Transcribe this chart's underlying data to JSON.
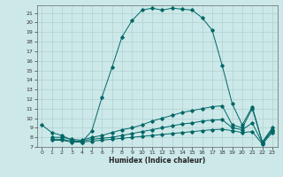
{
  "xlabel": "Humidex (Indice chaleur)",
  "xlim": [
    -0.5,
    23.5
  ],
  "ylim": [
    7,
    21.8
  ],
  "yticks": [
    7,
    8,
    9,
    10,
    11,
    12,
    13,
    14,
    15,
    16,
    17,
    18,
    19,
    20,
    21
  ],
  "xticks": [
    0,
    1,
    2,
    3,
    4,
    5,
    6,
    7,
    8,
    9,
    10,
    11,
    12,
    13,
    14,
    15,
    16,
    17,
    18,
    19,
    20,
    21,
    22,
    23
  ],
  "bg_color": "#cce8e8",
  "line_color": "#006666",
  "lines": [
    {
      "x": [
        0,
        1,
        2,
        3,
        4,
        5,
        6,
        7,
        8,
        9,
        10,
        11,
        12,
        13,
        14,
        15,
        16,
        17,
        18,
        19,
        20,
        21,
        22,
        23
      ],
      "y": [
        9.3,
        8.5,
        8.2,
        7.7,
        7.5,
        8.7,
        12.2,
        15.3,
        18.5,
        20.2,
        21.3,
        21.5,
        21.3,
        21.5,
        21.4,
        21.3,
        20.5,
        19.2,
        15.5,
        11.5,
        9.3,
        11.2,
        7.5,
        9.0
      ]
    },
    {
      "x": [
        1,
        2,
        3,
        4,
        5,
        6,
        7,
        8,
        9,
        10,
        11,
        12,
        13,
        14,
        15,
        16,
        17,
        18,
        19,
        20,
        21,
        22,
        23
      ],
      "y": [
        8.0,
        8.0,
        7.8,
        7.7,
        8.0,
        8.2,
        8.5,
        8.8,
        9.0,
        9.3,
        9.7,
        10.0,
        10.3,
        10.6,
        10.8,
        11.0,
        11.2,
        11.3,
        9.3,
        9.0,
        11.0,
        7.5,
        8.8
      ]
    },
    {
      "x": [
        1,
        2,
        3,
        4,
        5,
        6,
        7,
        8,
        9,
        10,
        11,
        12,
        13,
        14,
        15,
        16,
        17,
        18,
        19,
        20,
        21,
        22,
        23
      ],
      "y": [
        7.8,
        7.8,
        7.6,
        7.6,
        7.8,
        7.9,
        8.0,
        8.2,
        8.4,
        8.6,
        8.8,
        9.0,
        9.2,
        9.4,
        9.5,
        9.7,
        9.8,
        9.85,
        9.0,
        8.8,
        9.5,
        7.4,
        8.7
      ]
    },
    {
      "x": [
        1,
        2,
        3,
        4,
        5,
        6,
        7,
        8,
        9,
        10,
        11,
        12,
        13,
        14,
        15,
        16,
        17,
        18,
        19,
        20,
        21,
        22,
        23
      ],
      "y": [
        7.7,
        7.7,
        7.5,
        7.5,
        7.6,
        7.7,
        7.8,
        7.9,
        8.0,
        8.1,
        8.2,
        8.3,
        8.4,
        8.5,
        8.6,
        8.7,
        8.8,
        8.85,
        8.7,
        8.5,
        8.6,
        7.3,
        8.5
      ]
    }
  ]
}
